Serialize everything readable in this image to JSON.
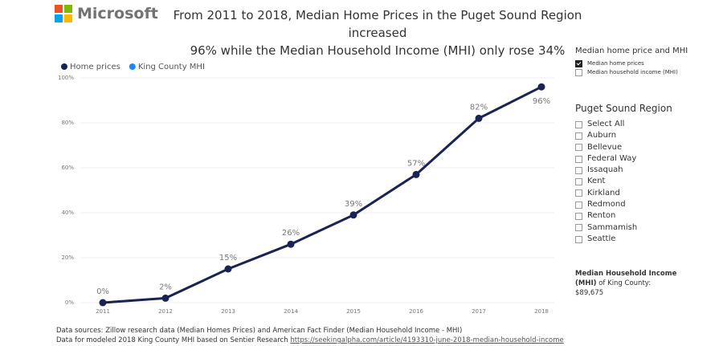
{
  "header": {
    "logo": "Microsoft",
    "title_lines": [
      "From 2011 to 2018, Median Home Prices in the Puget Sound Region increased",
      "96% while the Median Household Income (MHI) only rose 34%"
    ]
  },
  "chart_data": {
    "type": "line",
    "categories": [
      "2011",
      "2012",
      "2013",
      "2014",
      "2015",
      "2016",
      "2017",
      "2018"
    ],
    "series": [
      {
        "name": "Home prices",
        "color": "#1a2351",
        "values": [
          0,
          2,
          15,
          26,
          39,
          57,
          82,
          96
        ],
        "value_labels": [
          "0%",
          "2%",
          "15%",
          "26%",
          "39%",
          "57%",
          "82%",
          "96%"
        ]
      },
      {
        "name": "King County MHI",
        "color": "#118dff",
        "values": [
          null,
          null,
          null,
          null,
          null,
          null,
          null,
          null
        ]
      }
    ],
    "ylim": [
      0,
      100
    ],
    "yticks": [
      {
        "value": 0,
        "label": "0%"
      },
      {
        "value": 20,
        "label": "20%"
      },
      {
        "value": 40,
        "label": "40%"
      },
      {
        "value": 60,
        "label": "60%"
      },
      {
        "value": 80,
        "label": "80%"
      },
      {
        "value": 100,
        "label": "100%"
      }
    ],
    "grid": true,
    "legend": "top-left"
  },
  "filters": {
    "measure": {
      "title": "Median home price and MHI",
      "options": [
        {
          "label": "Median home prices",
          "checked": true
        },
        {
          "label": "Median household income (MHI)",
          "checked": false
        }
      ]
    },
    "region": {
      "title": "Puget Sound Region",
      "options": [
        {
          "label": "Select All",
          "checked": false
        },
        {
          "label": "Auburn",
          "checked": false
        },
        {
          "label": "Bellevue",
          "checked": false
        },
        {
          "label": "Federal Way",
          "checked": false
        },
        {
          "label": "Issaquah",
          "checked": false
        },
        {
          "label": "Kent",
          "checked": false
        },
        {
          "label": "Kirkland",
          "checked": false
        },
        {
          "label": "Redmond",
          "checked": false
        },
        {
          "label": "Renton",
          "checked": false
        },
        {
          "label": "Sammamish",
          "checked": false
        },
        {
          "label": "Seattle",
          "checked": false
        }
      ]
    }
  },
  "note": {
    "bold": "Median Household Income (MHI)",
    "text": "of King County:",
    "value": "$89,675"
  },
  "footer": {
    "line1": "Data sources: Zillow research data (Median Homes Prices) and American Fact Finder (Median Household Income - MHI)",
    "line2": "Data for modeled 2018 King County MHI based on Sentier Research",
    "link": "https://seekingalpha.com/article/4193310-june-2018-median-household-income"
  }
}
